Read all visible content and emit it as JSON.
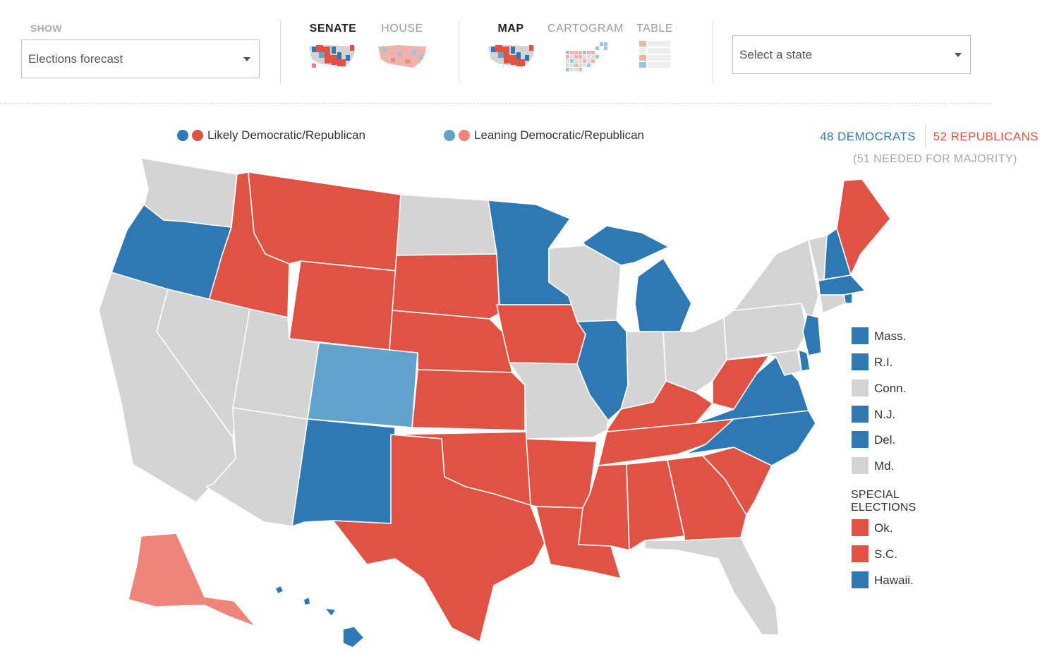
{
  "controls": {
    "show_label": "SHOW",
    "show_select_value": "Elections forecast",
    "chamber_tabs": [
      {
        "label": "SENATE",
        "active": true
      },
      {
        "label": "HOUSE",
        "active": false
      }
    ],
    "view_tabs": [
      {
        "label": "MAP",
        "active": true
      },
      {
        "label": "CARTOGRAM",
        "active": false
      },
      {
        "label": "TABLE",
        "active": false
      }
    ],
    "state_select_placeholder": "Select a state"
  },
  "legend": {
    "likely": "Likely Democratic/Republican",
    "leaning": "Leaning Democratic/Republican"
  },
  "totals": {
    "democrats": "48 DEMOCRATS",
    "republicans": "52 REPUBLICANS",
    "majority_note": "(51 NEEDED FOR MAJORITY)"
  },
  "colors": {
    "likely_dem": "#2e78b4",
    "likely_rep": "#e05344",
    "leaning_dem": "#61a3cc",
    "leaning_rep": "#ef847a",
    "no_race": "#d4d4d4"
  },
  "small_states": [
    {
      "label": "Mass.",
      "status": "likely_dem"
    },
    {
      "label": "R.I.",
      "status": "likely_dem"
    },
    {
      "label": "Conn.",
      "status": "no_race"
    },
    {
      "label": "N.J.",
      "status": "likely_dem"
    },
    {
      "label": "Del.",
      "status": "likely_dem"
    },
    {
      "label": "Md.",
      "status": "no_race"
    }
  ],
  "special_elections": {
    "title_line1": "SPECIAL",
    "title_line2": "ELECTIONS",
    "items": [
      {
        "label": "Ok.",
        "status": "likely_rep"
      },
      {
        "label": "S.C.",
        "status": "likely_rep"
      },
      {
        "label": "Hawaii.",
        "status": "likely_dem"
      }
    ]
  },
  "map_states": {
    "WA": "no_race",
    "OR": "likely_dem",
    "CA": "no_race",
    "ID": "likely_rep",
    "NV": "no_race",
    "MT": "likely_rep",
    "WY": "likely_rep",
    "UT": "no_race",
    "AZ": "no_race",
    "CO": "leaning_dem",
    "NM": "likely_dem",
    "ND": "no_race",
    "SD": "likely_rep",
    "NE": "likely_rep",
    "KS": "likely_rep",
    "OK": "likely_rep",
    "TX": "likely_rep",
    "MN": "likely_dem",
    "IA": "likely_rep",
    "MO": "no_race",
    "AR": "likely_rep",
    "LA": "likely_rep",
    "WI": "no_race",
    "IL": "likely_dem",
    "MI": "likely_dem",
    "IN": "no_race",
    "OH": "no_race",
    "KY": "likely_rep",
    "TN": "likely_rep",
    "MS": "likely_rep",
    "AL": "likely_rep",
    "GA": "likely_rep",
    "FL": "no_race",
    "SC": "likely_rep",
    "NC": "likely_dem",
    "VA": "likely_dem",
    "WV": "likely_rep",
    "PA": "no_race",
    "NY": "no_race",
    "VT": "no_race",
    "NH": "likely_dem",
    "ME": "likely_rep",
    "MA": "likely_dem",
    "RI": "likely_dem",
    "CT": "no_race",
    "NJ": "likely_dem",
    "DE": "likely_dem",
    "MD": "no_race",
    "AK": "leaning_rep",
    "HI": "likely_dem"
  }
}
